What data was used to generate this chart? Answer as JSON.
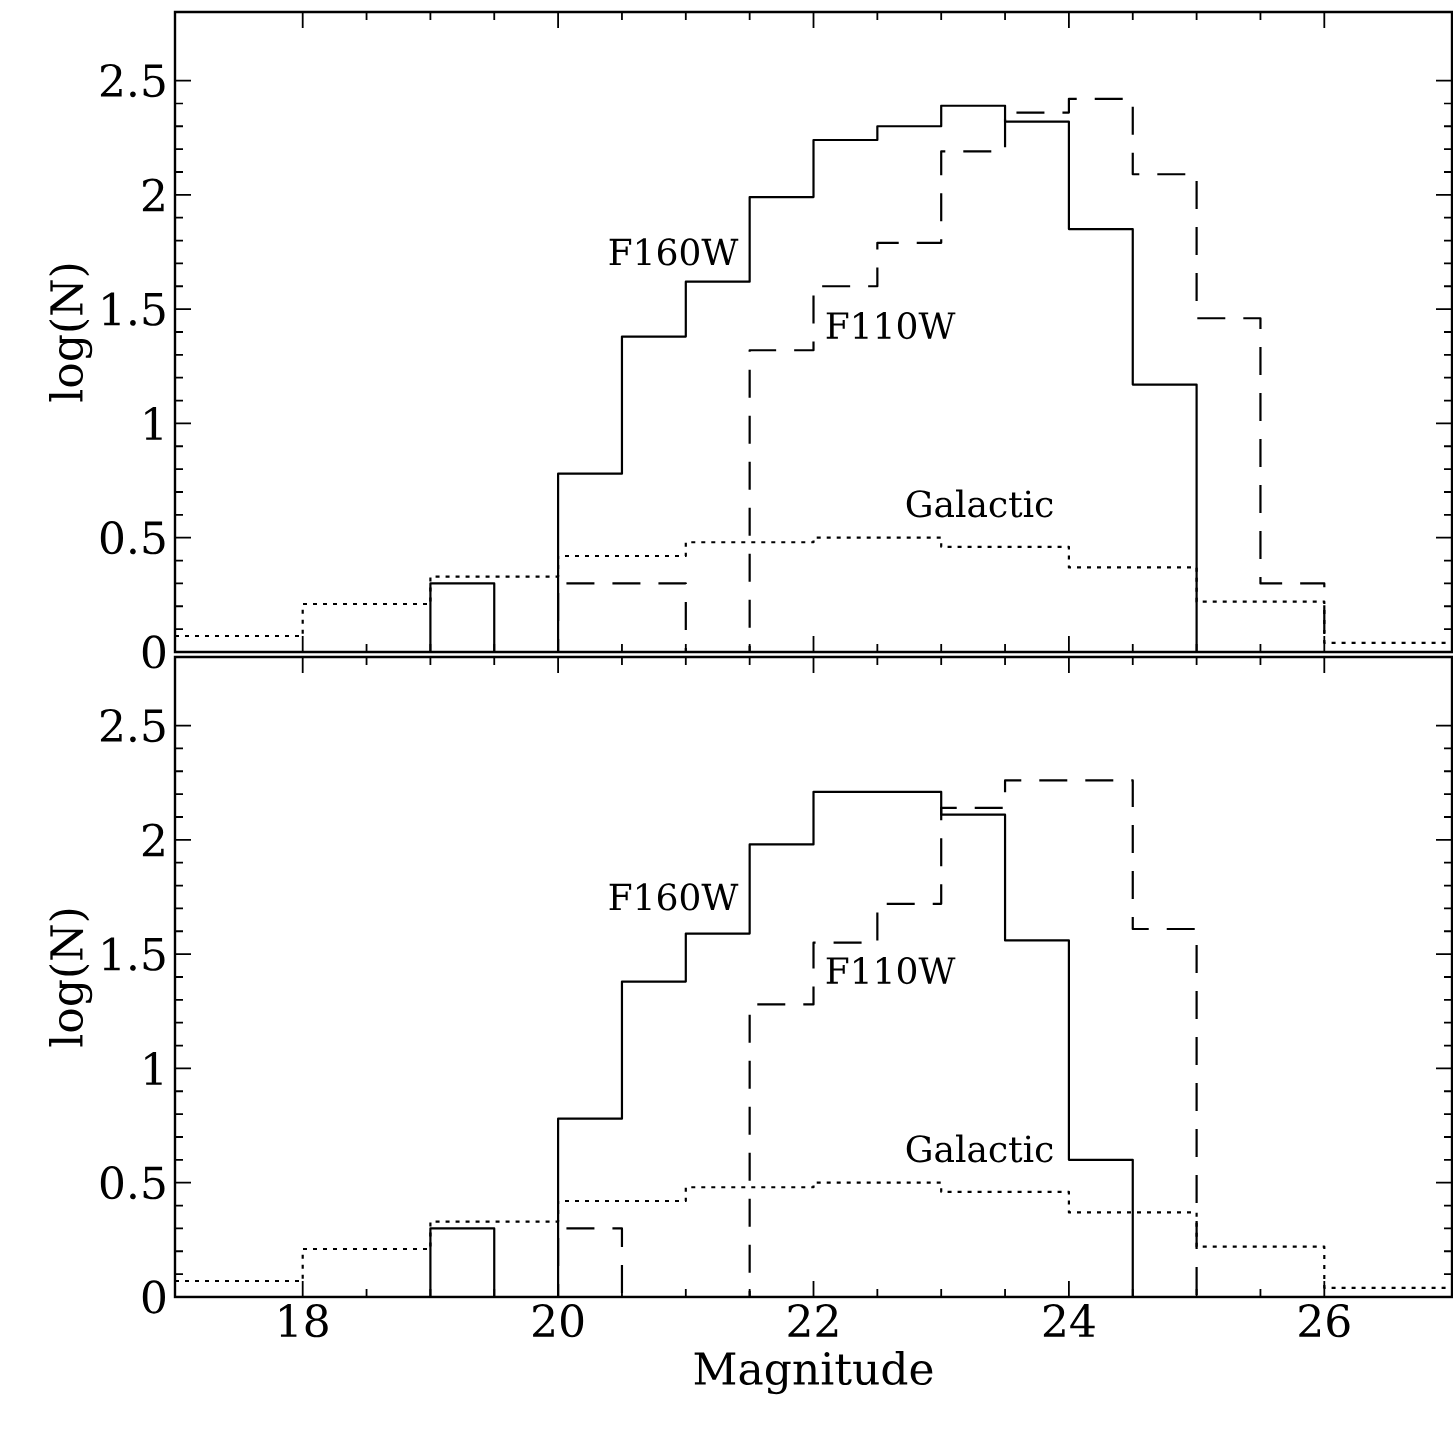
{
  "chart_data": [
    {
      "type": "step",
      "ylabel": "log(N)",
      "x": [
        17,
        17.5,
        18,
        18.5,
        19,
        19.5,
        20,
        20.5,
        21,
        21.5,
        22,
        22.5,
        23,
        23.5,
        24,
        24.5,
        25,
        25.5,
        26,
        26.5,
        27
      ],
      "series": [
        {
          "color": "#000000",
          "line_style": "solid",
          "values": [
            0,
            0,
            0,
            0,
            0.3,
            0,
            0.78,
            1.38,
            1.62,
            1.99,
            2.24,
            2.3,
            2.39,
            2.32,
            1.85,
            1.17,
            0,
            0,
            0,
            0,
            0
          ]
        },
        {
          "color": "#000000",
          "line_style": "dashed",
          "values": [
            0,
            0,
            0,
            0,
            0,
            0,
            0.3,
            0.3,
            0,
            1.32,
            1.6,
            1.79,
            2.19,
            2.36,
            2.42,
            2.09,
            1.46,
            0.3,
            0,
            0,
            0
          ]
        },
        {
          "color": "#000000",
          "line_style": "dotted",
          "values": [
            0.07,
            0.07,
            0.21,
            0.21,
            0.33,
            0.33,
            0.42,
            0.42,
            0.48,
            0.48,
            0.5,
            0.5,
            0.46,
            0.46,
            0.37,
            0.37,
            0.22,
            0.22,
            0.04,
            0.04,
            0.04
          ]
        }
      ],
      "annotations": [
        "F160W",
        "F110W",
        "Galactic"
      ],
      "xlim": [
        17,
        27
      ],
      "ylim": [
        0,
        2.8
      ],
      "xticks": [
        18,
        20,
        22,
        24,
        26
      ],
      "yticks": [
        0,
        0.5,
        1,
        1.5,
        2,
        2.5
      ],
      "tick_labels": "y"
    },
    {
      "type": "step",
      "xlabel": "Magnitude",
      "ylabel": "log(N)",
      "x": [
        17,
        17.5,
        18,
        18.5,
        19,
        19.5,
        20,
        20.5,
        21,
        21.5,
        22,
        22.5,
        23,
        23.5,
        24,
        24.5,
        25,
        25.5,
        26,
        26.5,
        27
      ],
      "series": [
        {
          "color": "#000000",
          "line_style": "solid",
          "values": [
            0,
            0,
            0,
            0,
            0.3,
            0,
            0.78,
            1.38,
            1.59,
            1.98,
            2.21,
            2.21,
            2.11,
            1.56,
            0.6,
            0,
            0,
            0,
            0,
            0,
            0
          ]
        },
        {
          "color": "#000000",
          "line_style": "dashed",
          "values": [
            0,
            0,
            0,
            0,
            0,
            0,
            0.3,
            0,
            0,
            1.28,
            1.55,
            1.72,
            2.14,
            2.26,
            2.26,
            1.61,
            0,
            0,
            0,
            0,
            0
          ]
        },
        {
          "color": "#000000",
          "line_style": "dotted",
          "values": [
            0.07,
            0.07,
            0.21,
            0.21,
            0.33,
            0.33,
            0.42,
            0.42,
            0.48,
            0.48,
            0.5,
            0.5,
            0.46,
            0.46,
            0.37,
            0.37,
            0.22,
            0.22,
            0.04,
            0.04,
            0.04
          ]
        }
      ],
      "annotations": [
        "F160W",
        "F110W",
        "Galactic"
      ],
      "xlim": [
        17,
        27
      ],
      "ylim": [
        0,
        2.8
      ],
      "xticks": [
        18,
        20,
        22,
        24,
        26
      ],
      "yticks": [
        0,
        0.5,
        1,
        1.5,
        2,
        2.5
      ]
    }
  ]
}
